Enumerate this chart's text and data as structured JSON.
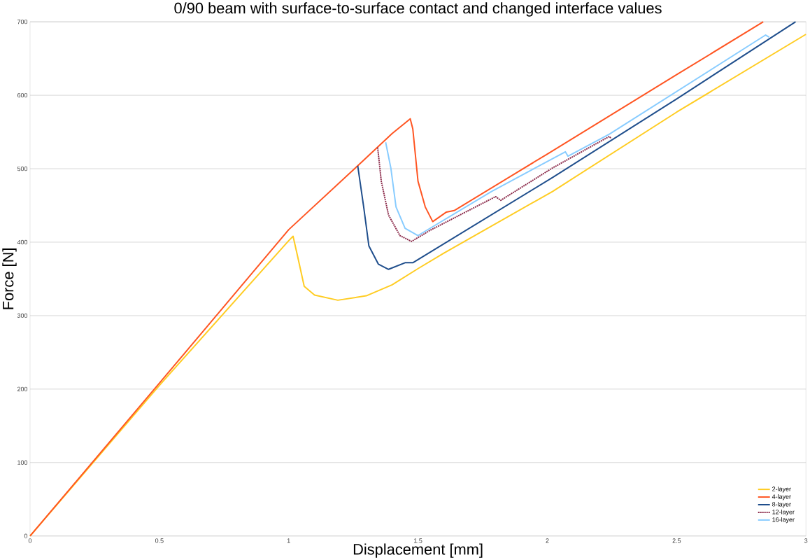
{
  "chart_data": {
    "type": "line",
    "title": "0/90 beam with surface-to-surface contact and changed interface values",
    "xlabel": "Displacement [mm]",
    "ylabel": "Force [N]",
    "xlim": [
      0,
      3
    ],
    "ylim": [
      0,
      700
    ],
    "xticks": [
      0,
      0.5,
      1,
      1.5,
      2,
      2.5,
      3
    ],
    "yticks": [
      0,
      100,
      200,
      300,
      400,
      500,
      600,
      700
    ],
    "grid": "y",
    "legend": "bottom right",
    "marker": "none",
    "series": [
      {
        "name": "2-layer",
        "color": "#ffcc22",
        "line_style": "solid",
        "x": [
          0,
          0.5,
          1.0,
          1.017,
          1.035,
          1.06,
          1.1,
          1.19,
          1.3,
          1.4,
          1.5,
          1.6,
          2.02,
          2.5,
          3
        ],
        "values": [
          0,
          205,
          402,
          408,
          380,
          340,
          328,
          321,
          327,
          342,
          364,
          385,
          469,
          577,
          683
        ]
      },
      {
        "name": "4-layer",
        "color": "#ff5522",
        "line_style": "solid",
        "x": [
          0,
          0.5,
          1.0,
          1.27,
          1.4,
          1.47,
          1.48,
          1.5,
          1.528,
          1.557,
          1.61,
          1.64,
          2.0,
          2.5,
          2.835
        ],
        "values": [
          0,
          208,
          417,
          505,
          548,
          568,
          554,
          483,
          448,
          428,
          441,
          443,
          520,
          628,
          700
        ]
      },
      {
        "name": "8-layer",
        "color": "#1f4e8c",
        "line_style": "solid",
        "x": [
          1.267,
          1.29,
          1.31,
          1.347,
          1.386,
          1.45,
          1.48,
          2.02,
          2.5,
          2.96
        ],
        "values": [
          504,
          448,
          395,
          370,
          363,
          372,
          372,
          488,
          595,
          700
        ]
      },
      {
        "name": "12-layer",
        "color": "#8b2a4a",
        "line_style": "dotted",
        "x": [
          1.344,
          1.358,
          1.386,
          1.43,
          1.475,
          1.546,
          1.8,
          1.82,
          2.02,
          2.24,
          2.247
        ],
        "values": [
          529,
          483,
          437,
          409,
          401,
          416,
          462,
          457,
          501,
          544,
          541
        ]
      },
      {
        "name": "16-layer",
        "color": "#88ccff",
        "line_style": "solid",
        "x": [
          1.375,
          1.395,
          1.415,
          1.45,
          1.5,
          1.784,
          2.07,
          2.08,
          2.24,
          2.844,
          2.858
        ],
        "values": [
          536,
          501,
          448,
          419,
          409,
          469,
          523,
          517,
          547,
          682,
          679
        ]
      }
    ]
  }
}
